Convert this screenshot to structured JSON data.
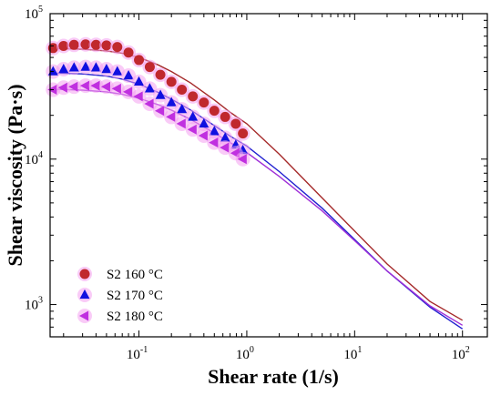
{
  "chart_data": {
    "type": "scatter",
    "xlabel": "Shear rate (1/s)",
    "ylabel": "Shear viscosity (Pa·s)",
    "xscale": "log",
    "yscale": "log",
    "xlim": [
      0.015,
      170
    ],
    "ylim": [
      600,
      100000
    ],
    "legend_position": "bottom-left",
    "x_ticks": [
      {
        "value": 0.1,
        "base": "10",
        "exp": "-1"
      },
      {
        "value": 1,
        "base": "10",
        "exp": "0"
      },
      {
        "value": 10,
        "base": "10",
        "exp": "1"
      },
      {
        "value": 100,
        "base": "10",
        "exp": "2"
      }
    ],
    "y_ticks": [
      {
        "value": 1000,
        "base": "10",
        "exp": "3"
      },
      {
        "value": 10000,
        "base": "10",
        "exp": "4"
      },
      {
        "value": 100000,
        "base": "10",
        "exp": "5"
      }
    ],
    "series": [
      {
        "name": "S2 160 °C",
        "marker": "circle",
        "color": "#c0282d",
        "glow": "#f4a0f0",
        "fit_color": "#a52a2a",
        "x": [
          0.016,
          0.02,
          0.025,
          0.032,
          0.04,
          0.05,
          0.063,
          0.08,
          0.1,
          0.126,
          0.158,
          0.2,
          0.25,
          0.316,
          0.4,
          0.5,
          0.63,
          0.79,
          0.92
        ],
        "y": [
          58000,
          60000,
          61000,
          61500,
          61000,
          60500,
          59000,
          54000,
          48000,
          43000,
          38000,
          34000,
          30000,
          27000,
          24500,
          21500,
          19500,
          17500,
          15000
        ],
        "fit_x": [
          0.015,
          0.02,
          0.03,
          0.05,
          0.07,
          0.1,
          0.15,
          0.2,
          0.3,
          0.5,
          0.7,
          1,
          2,
          5,
          10,
          20,
          50,
          100
        ],
        "fit_y": [
          57500,
          57400,
          57000,
          55500,
          53500,
          50000,
          44500,
          40000,
          33500,
          25500,
          21000,
          17500,
          10800,
          5400,
          3200,
          1900,
          1050,
          780
        ]
      },
      {
        "name": "S2 170 °C",
        "marker": "triangle-up",
        "color": "#1010e0",
        "glow": "#f4a0f0",
        "fit_color": "#2020d0",
        "x": [
          0.016,
          0.02,
          0.025,
          0.032,
          0.04,
          0.05,
          0.063,
          0.08,
          0.1,
          0.126,
          0.158,
          0.2,
          0.25,
          0.316,
          0.4,
          0.5,
          0.63,
          0.79,
          0.92
        ],
        "y": [
          40000,
          41500,
          42500,
          43000,
          42500,
          41500,
          40000,
          37500,
          34000,
          30500,
          27500,
          24500,
          22000,
          19500,
          17500,
          15500,
          14000,
          12500,
          11500
        ],
        "fit_x": [
          0.015,
          0.02,
          0.03,
          0.05,
          0.07,
          0.1,
          0.15,
          0.2,
          0.3,
          0.5,
          0.7,
          1,
          2,
          5,
          10,
          20,
          50,
          100
        ],
        "fit_y": [
          39000,
          38900,
          38500,
          37200,
          35500,
          32800,
          28800,
          25800,
          21800,
          17000,
          14400,
          12300,
          8200,
          4600,
          2800,
          1700,
          960,
          680
        ]
      },
      {
        "name": "S2 180 °C",
        "marker": "triangle-left",
        "color": "#c030e0",
        "glow": "#f4a0f0",
        "fit_color": "#a030d8",
        "x": [
          0.016,
          0.02,
          0.025,
          0.032,
          0.04,
          0.05,
          0.063,
          0.08,
          0.1,
          0.126,
          0.158,
          0.2,
          0.25,
          0.316,
          0.4,
          0.5,
          0.63,
          0.79,
          0.92
        ],
        "y": [
          30000,
          31000,
          31500,
          32000,
          32000,
          31500,
          30500,
          29000,
          27000,
          24000,
          21500,
          19500,
          17500,
          16000,
          14500,
          13000,
          12000,
          11000,
          10000
        ],
        "fit_x": [
          0.015,
          0.02,
          0.03,
          0.05,
          0.07,
          0.1,
          0.15,
          0.2,
          0.3,
          0.5,
          0.7,
          1,
          2,
          5,
          10,
          20,
          50,
          100
        ],
        "fit_y": [
          30200,
          30100,
          29800,
          29000,
          27900,
          26200,
          23700,
          21700,
          18800,
          15100,
          13000,
          11100,
          7600,
          4400,
          2750,
          1700,
          980,
          720
        ]
      }
    ]
  }
}
